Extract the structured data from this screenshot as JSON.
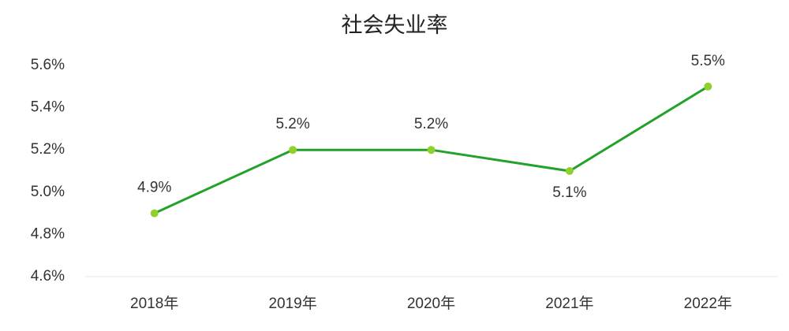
{
  "chart_data": {
    "type": "line",
    "title": "社会失业率",
    "categories": [
      "2018年",
      "2019年",
      "2020年",
      "2021年",
      "2022年"
    ],
    "values": [
      4.9,
      5.2,
      5.2,
      5.1,
      5.5
    ],
    "value_labels": [
      "4.9%",
      "5.2%",
      "5.2%",
      "5.1%",
      "5.5%"
    ],
    "color": "#23a22b",
    "marker_color": "#8fd12b",
    "ylim": [
      4.6,
      5.6
    ],
    "yticks": [
      {
        "value": 4.6,
        "label": "4.6%"
      },
      {
        "value": 4.8,
        "label": "4.8%"
      },
      {
        "value": 5.0,
        "label": "5.0%"
      },
      {
        "value": 5.2,
        "label": "5.2%"
      },
      {
        "value": 5.4,
        "label": "5.4%"
      },
      {
        "value": 5.6,
        "label": "5.6%"
      }
    ],
    "grid": false
  }
}
